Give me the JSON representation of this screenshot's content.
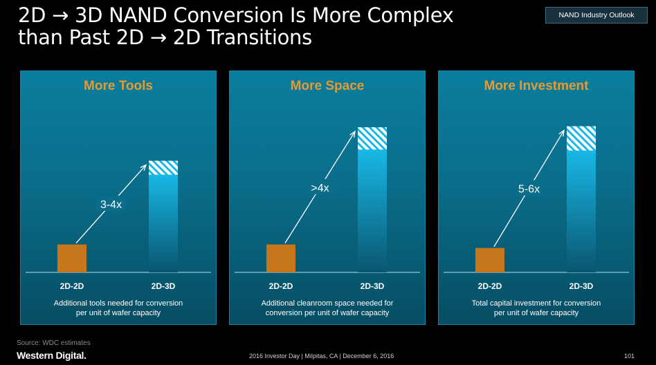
{
  "slide": {
    "title_line1": "2D → 3D NAND Conversion Is More Complex",
    "title_line2": "than Past 2D → 2D Transitions",
    "badge": "NAND Industry Outlook",
    "source": "Source: WDC estimates",
    "logo": "Western Digital.",
    "footer": "2016 Investor Day | Milpitas, CA | December 6, 2016",
    "page_number": "101"
  },
  "colors": {
    "panel_top": "#0a7e9d",
    "panel_bottom": "#064d63",
    "title_orange": "#e59a33",
    "bar_2d": "#c8761c",
    "bar_3d": "#18b8e6"
  },
  "chart_data": [
    {
      "type": "bar",
      "title": "More Tools",
      "categories": [
        "2D-2D",
        "2D-3D"
      ],
      "values": [
        1,
        3.5
      ],
      "range_top": 4,
      "annotation": "3-4x",
      "caption_line1": "Additional tools needed for conversion",
      "caption_line2": "per unit of wafer capacity",
      "ylim": [
        0,
        5.5
      ]
    },
    {
      "type": "bar",
      "title": "More Space",
      "categories": [
        "2D-2D",
        "2D-3D"
      ],
      "values": [
        1,
        4.4
      ],
      "range_top": 5.2,
      "annotation": ">4x",
      "caption_line1": "Additional cleanroom space needed for",
      "caption_line2": "conversion per unit of wafer capacity",
      "ylim": [
        0,
        5.5
      ]
    },
    {
      "type": "bar",
      "title": "More Investment",
      "categories": [
        "2D-2D",
        "2D-3D"
      ],
      "values": [
        1,
        5
      ],
      "range_top": 6,
      "annotation": "5-6x",
      "caption_line1": "Total capital investment for conversion",
      "caption_line2": "per unit of wafer capacity",
      "ylim": [
        0,
        6.3
      ]
    }
  ]
}
